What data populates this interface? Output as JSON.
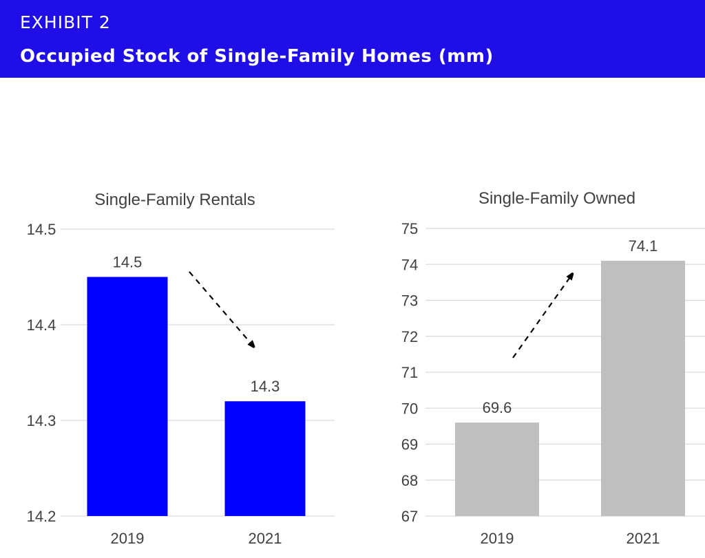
{
  "header": {
    "exhibit_label": "EXHIBIT 2",
    "title": "Occupied Stock of Single-Family Homes (mm)",
    "banner_color": "#1f0fe6"
  },
  "chart_data": [
    {
      "type": "bar",
      "title": "Single-Family Rentals",
      "categories": [
        "2019",
        "2021"
      ],
      "values": [
        14.45,
        14.32
      ],
      "data_labels": [
        "14.5",
        "14.3"
      ],
      "ylim": [
        14.2,
        14.5
      ],
      "yticks": [
        "14.2",
        "14.3",
        "14.4",
        "14.5"
      ],
      "bar_color": "#0000ff",
      "grid": true,
      "annotation": "dashed arrow pointing down"
    },
    {
      "type": "bar",
      "title": "Single-Family Owned",
      "categories": [
        "2019",
        "2021"
      ],
      "values": [
        69.6,
        74.1
      ],
      "data_labels": [
        "69.6",
        "74.1"
      ],
      "ylim": [
        67,
        75
      ],
      "yticks": [
        "67",
        "68",
        "69",
        "70",
        "71",
        "72",
        "73",
        "74",
        "75"
      ],
      "bar_color": "#bfbfbf",
      "grid": true,
      "annotation": "dashed arrow pointing up"
    }
  ]
}
